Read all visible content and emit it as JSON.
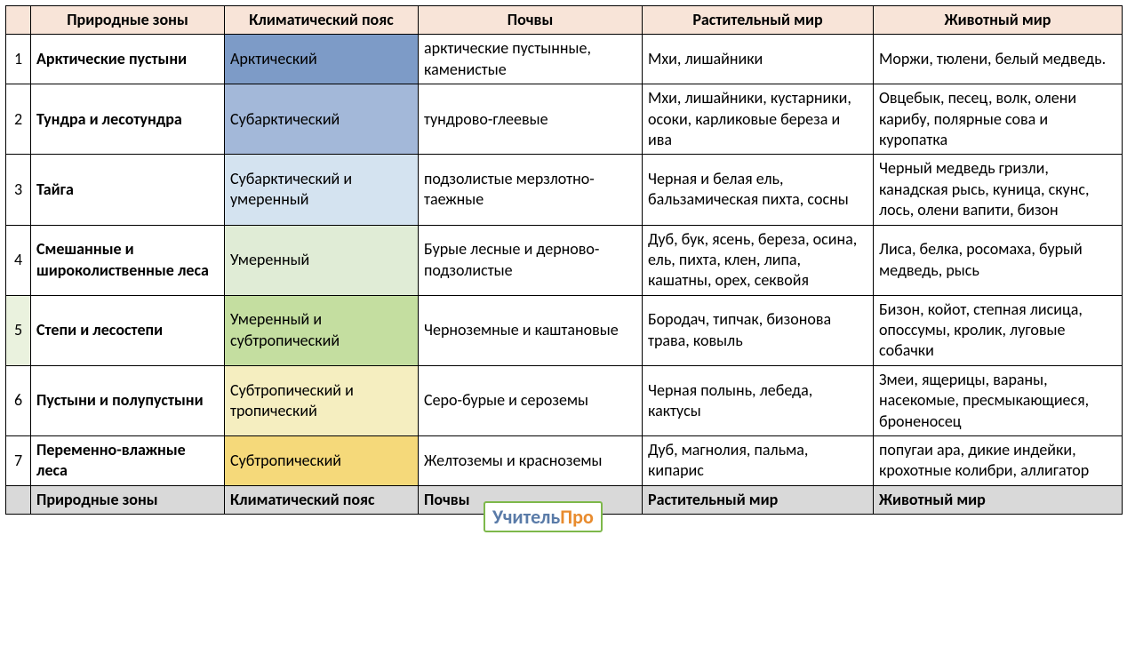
{
  "headers": {
    "zone": "Природные зоны",
    "climate": "Климатический пояс",
    "soil": "Почвы",
    "plants": "Растительный мир",
    "animals": "Животный мир"
  },
  "header_bg": "#f8e4d8",
  "footer_bg": "#d9d9d9",
  "climate_colors": {
    "r1": "#7d9bc7",
    "r2": "#a3b8d9",
    "r3": "#d4e3f0",
    "r4": "#e0ecd6",
    "r5": "#c4dea0",
    "r6": "#f5eec0",
    "r7": "#f5d97a"
  },
  "num_cell_colors": {
    "r5": "#eaf2de"
  },
  "rows": [
    {
      "num": "1",
      "zone": "Арктические пустыни",
      "climate": "Арктический",
      "soil": "арктические пустынные, каменистые",
      "plants": "Мхи, лишайники",
      "animals": "Моржи, тюлени, белый медведь."
    },
    {
      "num": "2",
      "zone": "Тундра и лесотундра",
      "climate": "Субарктический",
      "soil": "тундрово-глеевые",
      "plants": "Мхи, лишайники, кустарники, осоки, карликовые береза и ива",
      "animals": "Овцебык, песец, волк, олени карибу, полярные сова и куропатка"
    },
    {
      "num": "3",
      "zone": "Тайга",
      "climate": "Субарктический и умеренный",
      "soil": "подзолистые мерзлотно-таежные",
      "plants": "Черная и белая ель, бальзамическая пихта, сосны",
      "animals": "Черный медведь гризли, канадская рысь, куница, скунс, лось, олени вапити, бизон"
    },
    {
      "num": "4",
      "zone": "Смешанные и широколиственные леса",
      "climate": "Умеренный",
      "soil": "Бурые лесные и дерново-подзолистые",
      "plants": "Дуб, бук, ясень, береза, осина, ель, пихта, клен, липа, кашатны, орех, секвойя",
      "animals": "Лиса, белка, росомаха, бурый медведь, рысь"
    },
    {
      "num": "5",
      "zone": "Степи и лесостепи",
      "climate": "Умеренный и субтропический",
      "soil": "Черноземные и каштановые",
      "plants": "Бородач, типчак, бизонова трава, ковыль",
      "animals": "Бизон, койот, степная лисица, опоссумы, кролик,  луговые собачки"
    },
    {
      "num": "6",
      "zone": "Пустыни и полупустыни",
      "climate": "Субтропический и тропический",
      "soil": "Серо-бурые и сероземы",
      "plants": "Черная полынь, лебеда, кактусы",
      "animals": "Змеи, ящерицы, вараны, насекомые, пресмыкающиеся, броненосец"
    },
    {
      "num": "7",
      "zone": "Переменно-влажные леса",
      "climate": "Субтропический",
      "soil": "Желтоземы и красноземы",
      "plants": "Дуб, магнолия, пальма, кипарис",
      "animals": "попугаи ара, дикие индейки, крохотные колибри, аллигатор"
    }
  ],
  "watermark": {
    "part1": "Учитель",
    "part2": "Про"
  }
}
